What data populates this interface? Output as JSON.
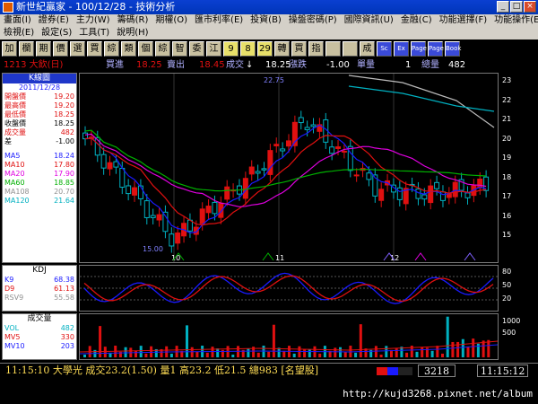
{
  "window": {
    "title": "新世紀贏家 - 100/12/28 - 技術分析"
  },
  "menu": {
    "row1": [
      "畫面(I)",
      "證券(E)",
      "主力(W)",
      "籌碼(R)",
      "期權(O)",
      "匯市利率(E)",
      "投資(B)",
      "操盤密碼(P)",
      "國際資訊(U)",
      "金融(C)",
      "功能選擇(F)",
      "功能操作(E)"
    ],
    "row2": [
      "檢視(E)",
      "設定(S)",
      "工具(T)",
      "說明(H)"
    ]
  },
  "toolbar": [
    "加",
    "欄",
    "期",
    "價",
    "選",
    "買",
    "綜",
    "類",
    "個",
    "綜",
    "智",
    "委",
    "江",
    "9",
    "8",
    "29",
    "轉",
    "買",
    "指",
    "",
    "",
    "成",
    "Sc",
    "Ex",
    "Page",
    "Page",
    "Book"
  ],
  "info": {
    "stock": "1213 大飲(日)",
    "buy_label": "買進",
    "buy": "18.25",
    "sell_label": "賣出",
    "sell": "18.45",
    "deal_label": "成交",
    "arrow": "↓",
    "deal": "18.25",
    "change_label": "漲跌",
    "change": "-1.00",
    "qty_label": "單量",
    "qty": "1",
    "vol_label": "總量",
    "vol": "482"
  },
  "kline_panel": {
    "title": "K線圖",
    "date": "2011/12/28",
    "rows": [
      {
        "label": "開盤價",
        "value": "19.20",
        "color": "#e01010"
      },
      {
        "label": "最高價",
        "value": "19.20",
        "color": "#e01010"
      },
      {
        "label": "最低價",
        "value": "18.25",
        "color": "#e01010"
      },
      {
        "label": "收盤價",
        "value": "18.25",
        "color": "#000000"
      },
      {
        "label": "成交量",
        "value": "482",
        "color": "#e01010"
      },
      {
        "label": "差",
        "value": "-1.00",
        "color": "#000000"
      }
    ],
    "ma": [
      {
        "label": "MA5",
        "value": "18.24",
        "color": "#1a1aff"
      },
      {
        "label": "MA10",
        "value": "17.80",
        "color": "#e01010"
      },
      {
        "label": "MA20",
        "value": "17.90",
        "color": "#e000e0"
      },
      {
        "label": "MA60",
        "value": "18.85",
        "color": "#00b000"
      },
      {
        "label": "MA108",
        "value": "20.70",
        "color": "#909090"
      },
      {
        "label": "MA120",
        "value": "21.64",
        "color": "#00b0c0"
      }
    ]
  },
  "kdj_panel": {
    "title": "KDJ",
    "rows": [
      {
        "label": "K9",
        "value": "68.38",
        "color": "#1a1aff"
      },
      {
        "label": "D9",
        "value": "61.13",
        "color": "#e01010"
      },
      {
        "label": "RSV9",
        "value": "55.58",
        "color": "#909090"
      }
    ]
  },
  "volume_panel": {
    "title": "成交量",
    "rows": [
      {
        "label": "VOL",
        "value": "482",
        "color": "#00b0c0"
      },
      {
        "label": "MV5",
        "value": "330",
        "color": "#e01010"
      },
      {
        "label": "MV10",
        "value": "203",
        "color": "#1a1aff"
      }
    ]
  },
  "main_axis": [
    "23",
    "22",
    "21",
    "20",
    "19",
    "18",
    "17",
    "16",
    "15"
  ],
  "kdj_axis": [
    "80",
    "50",
    "20"
  ],
  "vol_axis": [
    "1000",
    "500"
  ],
  "annotations": {
    "high": "22.75",
    "low": "15.00"
  },
  "month_labels": [
    "10",
    "11",
    "12"
  ],
  "status": {
    "text": "11:15:10 大學光 成交23.2(1.50) 量1 高23.2 低21.5 總983 [名望股]",
    "code": "3218",
    "time": "11:15:12"
  },
  "footer": {
    "url": "http://kujd3268.pixnet.net/album"
  },
  "colors": {
    "up": "#e01010",
    "down": "#00b0c0",
    "neutral": "#ffffff"
  }
}
